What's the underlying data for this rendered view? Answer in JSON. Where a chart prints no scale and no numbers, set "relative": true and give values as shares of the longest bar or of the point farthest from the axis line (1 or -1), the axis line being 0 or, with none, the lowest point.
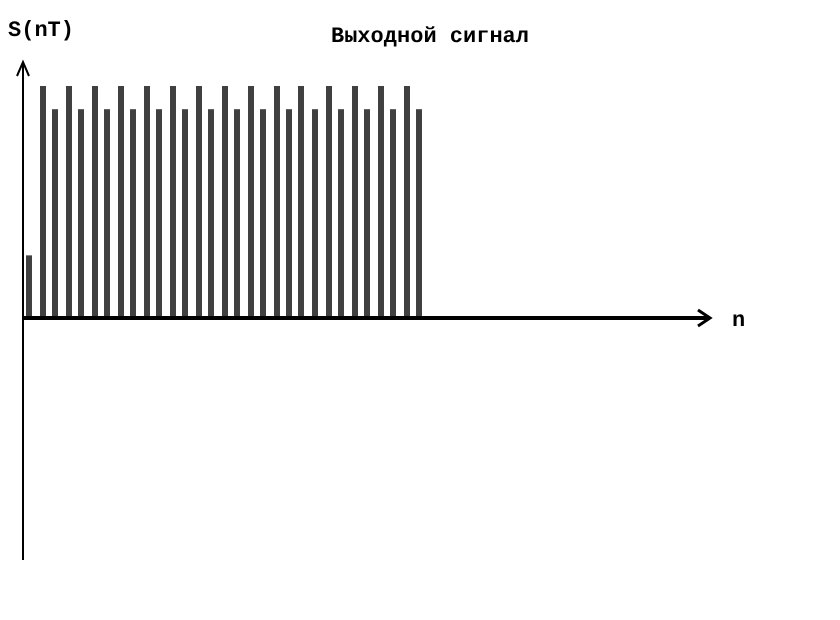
{
  "chart_data": {
    "type": "bar",
    "title": "Выходной сигнал",
    "ylabel": "S(nT)",
    "annotations": [
      "n"
    ],
    "relative": true,
    "color": "#404040",
    "categories": [
      null,
      null,
      null,
      null,
      null,
      null,
      null,
      null,
      null,
      null,
      null,
      null,
      null,
      null,
      null,
      null,
      null,
      null,
      null,
      null,
      null,
      null,
      null,
      null,
      null,
      null,
      null,
      null,
      null,
      null,
      null
    ],
    "values": [
      0.27,
      1,
      0.9,
      1,
      0.9,
      1,
      0.9,
      1,
      0.9,
      1,
      0.9,
      1,
      0.9,
      1,
      0.9,
      1,
      0.9,
      1,
      0.9,
      1,
      0.9,
      1,
      0.9,
      1,
      0.9,
      1,
      0.9,
      1,
      0.9,
      1,
      0.9
    ]
  }
}
